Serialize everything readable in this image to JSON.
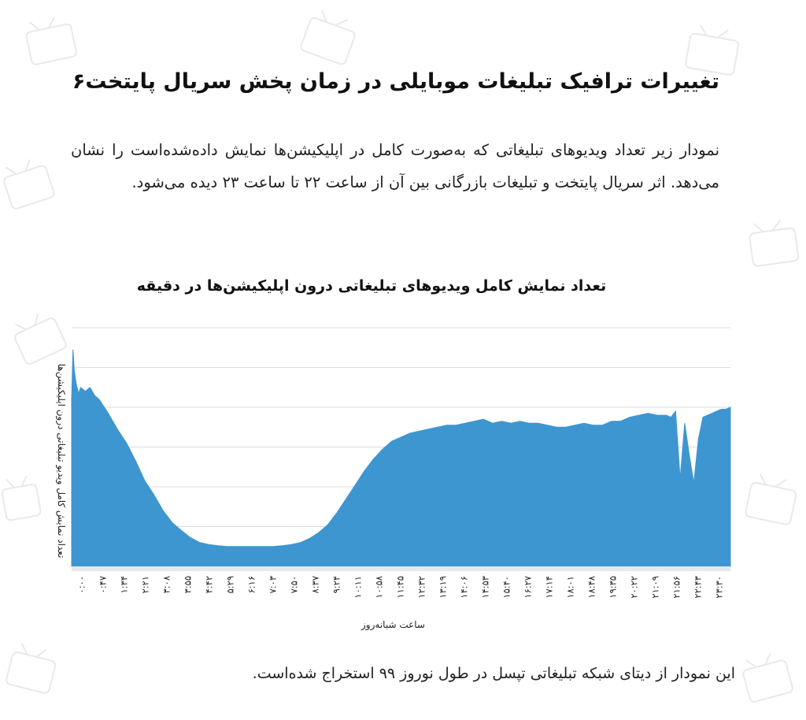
{
  "page": {
    "title": "تغییرات ترافیک تبلیغات موبایلی در زمان پخش سریال پایتخت۶",
    "intro": "نمودار زیر تعداد ویدیوهای تبلیغاتی که به‌صورت کامل در اپلیکیشن‌ها نمایش داده‌شده‌است را نشان می‌دهد. اثر سریال پایتخت و تبلیغات بازرگانی بین آن از ساعت ۲۲ تا ساعت ۲۳ دیده می‌شود.",
    "footer": "این نمودار از دیتای شبکه تبلیغاتی تپسل در طول نوروز ۹۹ استخراج شده‌است."
  },
  "colors": {
    "fill": "#3d96d0",
    "grid": "#dcdcdc",
    "text": "#222222"
  },
  "chart_data": {
    "type": "area",
    "title": "تعداد نمایش کامل ویدیوهای تبلیغاتی درون اپلیکیشن‌ها در دقیقه",
    "xlabel": "ساعت شبانه‌روز",
    "ylabel": "تعداد نمایش کامل ویدیو تبلیغاتی درون اپلیکیشن‌ها",
    "x_range_minutes": [
      0,
      1440
    ],
    "ylim": [
      0,
      6
    ],
    "grid": true,
    "y_gridlines": [
      1,
      2,
      3,
      4,
      5,
      6
    ],
    "xtick_labels": [
      "۰:۰۰",
      "۰:۴۷",
      "۱:۳۴",
      "۲:۲۱",
      "۳:۰۸",
      "۳:۵۵",
      "۴:۴۲",
      "۵:۲۹",
      "۶:۱۶",
      "۷:۰۳",
      "۷:۵۰",
      "۸:۳۷",
      "۹:۲۴",
      "۱۰:۱۱",
      "۱۰:۵۸",
      "۱۱:۴۵",
      "۱۲:۳۲",
      "۱۳:۱۹",
      "۱۴:۰۶",
      "۱۴:۵۳",
      "۱۵:۴۰",
      "۱۶:۲۷",
      "۱۷:۱۴",
      "۱۸:۰۱",
      "۱۸:۴۸",
      "۱۹:۳۵",
      "۲۰:۲۲",
      "۲۱:۰۹",
      "۲۱:۵۶",
      "۲۲:۴۳",
      "۲۳:۳۰"
    ],
    "series": [
      {
        "x": [
          0,
          3,
          6,
          10,
          15,
          20,
          30,
          40,
          50,
          60,
          80,
          100,
          120,
          140,
          160,
          180,
          200,
          220,
          240,
          260,
          280,
          300,
          320,
          340,
          360,
          380,
          400,
          420,
          440,
          460,
          480,
          500,
          520,
          540,
          560,
          580,
          600,
          620,
          640,
          660,
          680,
          700,
          720,
          740,
          760,
          780,
          800,
          820,
          840,
          860,
          880,
          900,
          920,
          940,
          960,
          980,
          1000,
          1020,
          1040,
          1060,
          1080,
          1100,
          1120,
          1140,
          1160,
          1180,
          1200,
          1220,
          1240,
          1260,
          1280,
          1300,
          1310,
          1320,
          1330,
          1340,
          1350,
          1360,
          1370,
          1380,
          1390,
          1400,
          1410,
          1420,
          1430,
          1440
        ],
        "values": [
          4.2,
          5.45,
          4.9,
          4.6,
          4.35,
          4.5,
          4.4,
          4.5,
          4.3,
          4.2,
          3.85,
          3.45,
          3.1,
          2.65,
          2.15,
          1.8,
          1.4,
          1.1,
          0.9,
          0.72,
          0.6,
          0.55,
          0.52,
          0.5,
          0.5,
          0.5,
          0.5,
          0.5,
          0.5,
          0.52,
          0.55,
          0.6,
          0.7,
          0.85,
          1.05,
          1.35,
          1.7,
          2.05,
          2.4,
          2.7,
          2.95,
          3.15,
          3.25,
          3.35,
          3.4,
          3.45,
          3.5,
          3.55,
          3.55,
          3.6,
          3.65,
          3.7,
          3.6,
          3.65,
          3.6,
          3.65,
          3.6,
          3.6,
          3.55,
          3.5,
          3.5,
          3.55,
          3.6,
          3.55,
          3.55,
          3.65,
          3.65,
          3.75,
          3.8,
          3.85,
          3.8,
          3.8,
          3.75,
          3.9,
          2.2,
          3.6,
          2.8,
          2.1,
          3.2,
          3.75,
          3.8,
          3.85,
          3.9,
          3.95,
          3.95,
          4.0
        ]
      }
    ]
  }
}
